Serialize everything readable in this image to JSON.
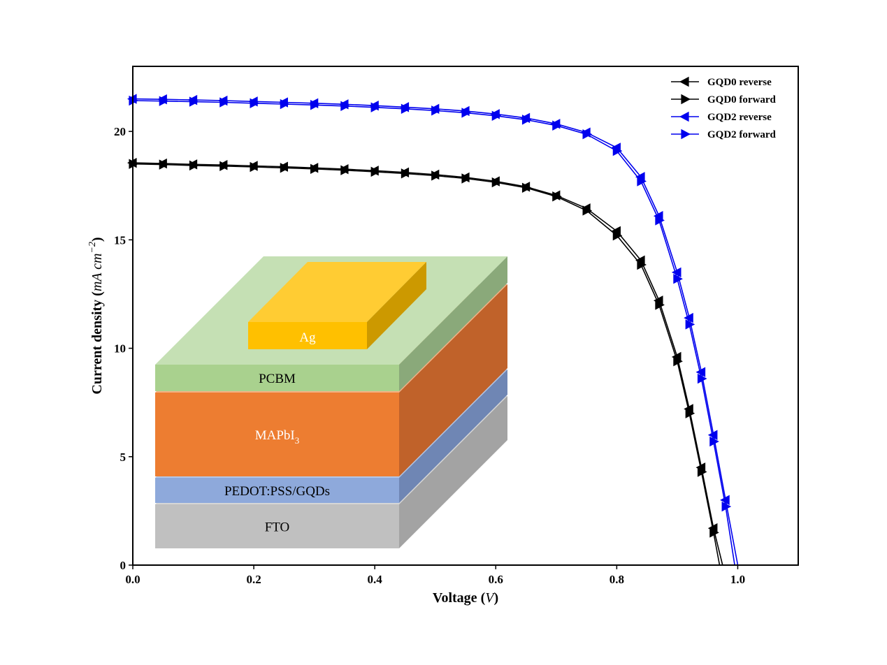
{
  "chart_data": {
    "type": "line",
    "xlabel": "Voltage",
    "xlabel_unit": "V",
    "ylabel": "Current density",
    "ylabel_unit": "mA cm",
    "ylabel_unit_exp": "−2",
    "xlim": [
      0.0,
      1.1
    ],
    "ylim": [
      0,
      23
    ],
    "xticks": [
      0.0,
      0.2,
      0.4,
      0.6,
      0.8,
      1.0
    ],
    "xtick_labels": [
      "0.0",
      "0.2",
      "0.4",
      "0.6",
      "0.8",
      "1.0"
    ],
    "yticks": [
      0,
      5,
      10,
      15,
      20
    ],
    "ytick_labels": [
      "0",
      "5",
      "10",
      "15",
      "20"
    ],
    "grid": false,
    "legend_position": "top-right",
    "series": [
      {
        "name": "GQD0 reverse",
        "color": "#000000",
        "marker": "triangle-left",
        "x": [
          0.0,
          0.05,
          0.1,
          0.15,
          0.2,
          0.25,
          0.3,
          0.35,
          0.4,
          0.45,
          0.5,
          0.55,
          0.6,
          0.65,
          0.7,
          0.75,
          0.8,
          0.84,
          0.87,
          0.9,
          0.92,
          0.94,
          0.96,
          0.975
        ],
        "y": [
          18.55,
          18.52,
          18.48,
          18.45,
          18.41,
          18.37,
          18.32,
          18.26,
          18.19,
          18.11,
          18.01,
          17.88,
          17.7,
          17.45,
          17.05,
          16.45,
          15.4,
          14.05,
          12.2,
          9.6,
          7.2,
          4.5,
          1.7,
          0.0
        ]
      },
      {
        "name": "GQD0 forward",
        "color": "#000000",
        "marker": "triangle-right",
        "x": [
          0.0,
          0.05,
          0.1,
          0.15,
          0.2,
          0.25,
          0.3,
          0.35,
          0.4,
          0.45,
          0.5,
          0.55,
          0.6,
          0.65,
          0.7,
          0.75,
          0.8,
          0.84,
          0.87,
          0.9,
          0.92,
          0.94,
          0.96,
          0.97
        ],
        "y": [
          18.5,
          18.47,
          18.43,
          18.4,
          18.36,
          18.32,
          18.27,
          18.21,
          18.14,
          18.06,
          17.96,
          17.83,
          17.65,
          17.4,
          17.0,
          16.35,
          15.2,
          13.85,
          12.0,
          9.4,
          7.0,
          4.3,
          1.5,
          0.0
        ]
      },
      {
        "name": "GQD2 reverse",
        "color": "#0000ee",
        "marker": "triangle-left",
        "x": [
          0.0,
          0.05,
          0.1,
          0.15,
          0.2,
          0.25,
          0.3,
          0.35,
          0.4,
          0.45,
          0.5,
          0.55,
          0.6,
          0.65,
          0.7,
          0.75,
          0.8,
          0.84,
          0.87,
          0.9,
          0.92,
          0.94,
          0.96,
          0.98,
          1.0
        ],
        "y": [
          21.5,
          21.48,
          21.45,
          21.42,
          21.38,
          21.34,
          21.3,
          21.25,
          21.19,
          21.12,
          21.04,
          20.94,
          20.8,
          20.62,
          20.35,
          19.95,
          19.25,
          17.9,
          16.1,
          13.5,
          11.4,
          8.9,
          6.0,
          3.0,
          0.0
        ]
      },
      {
        "name": "GQD2 forward",
        "color": "#0000ee",
        "marker": "triangle-right",
        "x": [
          0.0,
          0.05,
          0.1,
          0.15,
          0.2,
          0.25,
          0.3,
          0.35,
          0.4,
          0.45,
          0.5,
          0.55,
          0.6,
          0.65,
          0.7,
          0.75,
          0.8,
          0.84,
          0.87,
          0.9,
          0.92,
          0.94,
          0.96,
          0.98,
          0.995
        ],
        "y": [
          21.42,
          21.4,
          21.37,
          21.34,
          21.3,
          21.26,
          21.22,
          21.17,
          21.11,
          21.04,
          20.96,
          20.86,
          20.72,
          20.54,
          20.27,
          19.87,
          19.1,
          17.7,
          15.9,
          13.2,
          11.1,
          8.6,
          5.7,
          2.7,
          0.0
        ]
      }
    ]
  },
  "inset": {
    "layers": [
      {
        "label": "FTO",
        "front": "#c0c0c0",
        "side": "#a3a3a3",
        "top": "#d6d6d6",
        "text_color": "#000000"
      },
      {
        "label": "PEDOT:PSS/GQDs",
        "front": "#8ea9db",
        "side": "#6f86b4",
        "top": "#b4c7e7",
        "text_color": "#000000"
      },
      {
        "label": "MAPbI",
        "label_sub": "3",
        "front": "#ed7d31",
        "side": "#c0622a",
        "top": "#f4b183",
        "text_color": "#ffffff"
      },
      {
        "label": "PCBM",
        "front": "#a9d18e",
        "side": "#8aa97a",
        "top": "#c5e0b4",
        "text_color": "#000000"
      },
      {
        "label": "Ag",
        "front": "#ffc000",
        "side": "#cc9900",
        "top": "#ffcc33",
        "text_color": "#ffffff"
      }
    ]
  }
}
